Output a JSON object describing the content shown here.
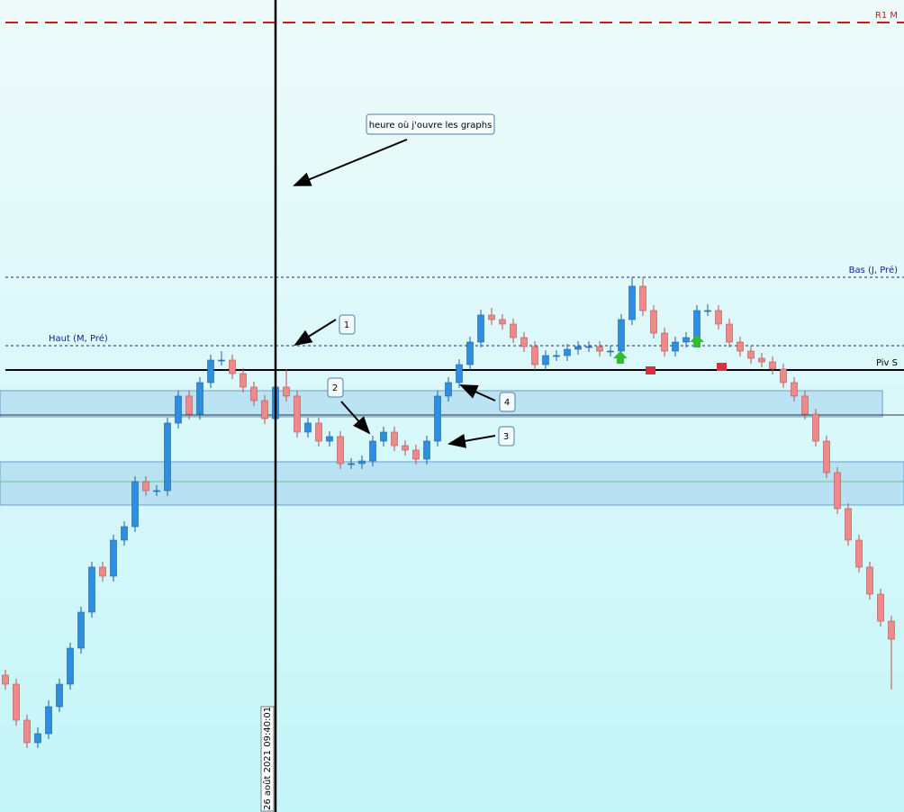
{
  "chart_data": {
    "type": "candlestick",
    "ylim": [
      0,
      900
    ],
    "open": [
      150,
      140,
      100,
      75,
      85,
      115,
      140,
      180,
      220,
      270,
      260,
      300,
      315,
      365,
      355,
      355,
      430,
      460,
      440,
      475,
      500,
      500,
      485,
      470,
      455,
      435,
      470,
      460,
      420,
      430,
      410,
      415,
      385,
      385,
      388,
      410,
      420,
      405,
      400,
      390,
      410,
      460,
      475,
      495,
      520,
      550,
      545,
      540,
      525,
      515,
      495,
      505,
      505,
      512,
      515,
      515,
      510,
      510,
      545,
      582,
      555,
      530,
      510,
      520,
      525,
      555,
      555,
      540,
      520,
      510,
      502,
      498,
      490,
      475,
      460,
      440,
      410,
      375,
      335,
      300,
      270,
      240,
      210
    ],
    "high": [
      156,
      146,
      106,
      92,
      122,
      146,
      186,
      226,
      276,
      276,
      306,
      321,
      371,
      371,
      361,
      436,
      466,
      466,
      481,
      506,
      510,
      506,
      491,
      476,
      461,
      476,
      490,
      466,
      436,
      436,
      421,
      421,
      391,
      394,
      416,
      426,
      426,
      411,
      406,
      416,
      466,
      481,
      501,
      526,
      556,
      558,
      551,
      546,
      531,
      521,
      511,
      511,
      518,
      521,
      521,
      521,
      516,
      551,
      592,
      592,
      561,
      536,
      526,
      531,
      561,
      562,
      561,
      546,
      526,
      516,
      508,
      504,
      496,
      481,
      466,
      446,
      416,
      381,
      341,
      306,
      276,
      246,
      216
    ],
    "low": [
      134,
      94,
      69,
      69,
      79,
      109,
      134,
      174,
      214,
      254,
      254,
      294,
      309,
      349,
      349,
      349,
      424,
      434,
      434,
      469,
      494,
      479,
      464,
      449,
      429,
      429,
      454,
      414,
      414,
      404,
      404,
      379,
      379,
      379,
      382,
      404,
      399,
      394,
      384,
      384,
      404,
      454,
      469,
      489,
      514,
      539,
      534,
      519,
      509,
      489,
      489,
      499,
      499,
      506,
      509,
      504,
      504,
      504,
      539,
      549,
      524,
      504,
      504,
      514,
      519,
      549,
      534,
      514,
      504,
      496,
      492,
      484,
      469,
      454,
      434,
      404,
      369,
      329,
      294,
      264,
      234,
      204,
      134
    ],
    "close": [
      140,
      100,
      75,
      85,
      115,
      140,
      180,
      220,
      270,
      260,
      300,
      315,
      365,
      355,
      355,
      430,
      460,
      440,
      475,
      500,
      500,
      485,
      470,
      455,
      435,
      470,
      460,
      420,
      430,
      410,
      415,
      385,
      385,
      388,
      410,
      420,
      405,
      400,
      390,
      410,
      460,
      475,
      495,
      520,
      550,
      545,
      540,
      525,
      515,
      495,
      505,
      505,
      512,
      515,
      515,
      510,
      510,
      545,
      582,
      555,
      530,
      510,
      520,
      525,
      555,
      555,
      540,
      520,
      510,
      502,
      498,
      490,
      475,
      460,
      440,
      410,
      375,
      335,
      300,
      270,
      240,
      210,
      190
    ],
    "up_color": "#2e8ee0",
    "down_color": "#ee8a8a",
    "levels": [
      {
        "label": "R1 M",
        "value": 875,
        "color": "#d01818",
        "dash": "long",
        "side": "right"
      },
      {
        "label": "Bas (J, Pré)",
        "value": 592,
        "color": "#1a237e",
        "dash": "short",
        "side": "right"
      },
      {
        "label": "Haut (M, Pré)",
        "value": 516,
        "color": "#1a237e",
        "dash": "short",
        "side": "left"
      },
      {
        "label": "Piv S",
        "value": 489,
        "color": "#000000",
        "dash": "solid",
        "side": "right"
      }
    ],
    "lines": [
      {
        "value": 439,
        "color": "#333333"
      },
      {
        "value": 365,
        "color": "#66cc66"
      }
    ],
    "zones": [
      [
        437,
        466
      ],
      [
        339,
        387
      ]
    ],
    "cursor_time": "26 août 2021 09:40:01",
    "annotations": [
      "heure où j'ouvre les graphs",
      "1",
      "2",
      "3",
      "4"
    ]
  }
}
